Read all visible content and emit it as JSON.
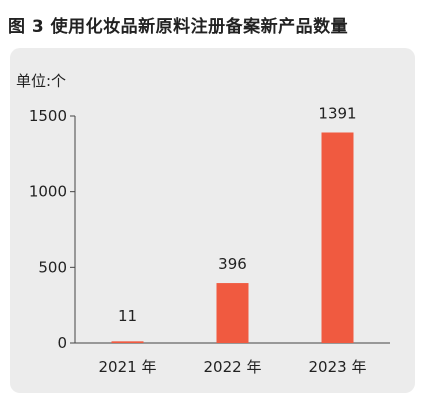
{
  "figure_title": "图 3   使用化妆品新原料注册备案新产品数量",
  "chart_data": {
    "type": "bar",
    "categories": [
      "2021 年",
      "2022 年",
      "2023 年"
    ],
    "values": [
      11,
      396,
      1391
    ],
    "unit_label": "单位:个",
    "yticks": [
      0,
      500,
      1000,
      1500
    ],
    "ylim": [
      0,
      1500
    ],
    "grid": false,
    "bar_color": "#f05a40"
  }
}
